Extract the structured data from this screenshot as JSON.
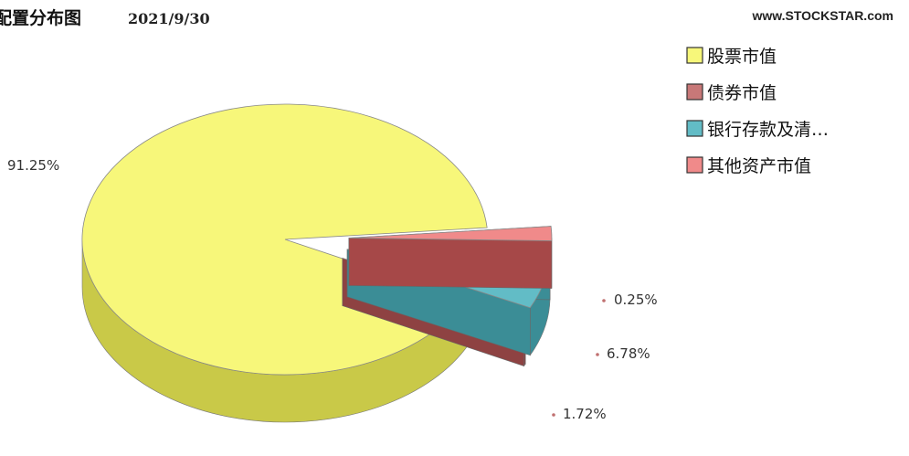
{
  "header": {
    "title": "配置分布图",
    "date": "2021/9/30",
    "source": "www.STOCKSTAR.com"
  },
  "chart_data": {
    "type": "pie",
    "title": "配置分布图",
    "subtitle": "2021/9/30",
    "legend_position": "top-right",
    "slices": [
      {
        "name": "股票市值",
        "legend_label": "股票市值",
        "value": 91.25,
        "label": "91.25%",
        "color": "#f7f77a",
        "side_color": "#c9c948"
      },
      {
        "name": "债券市值",
        "legend_label": "债券市值",
        "value": 0.25,
        "label": "0.25%",
        "color": "#c87878",
        "side_color": "#8e4242"
      },
      {
        "name": "银行存款及清算备付金合计",
        "legend_label": "银行存款及清…",
        "value": 6.78,
        "label": "6.78%",
        "color": "#62bcc6",
        "side_color": "#3b8d96"
      },
      {
        "name": "其他资产市值",
        "legend_label": "其他资产市值",
        "value": 1.72,
        "label": "1.72%",
        "color": "#f08a8a",
        "side_color": "#a64848"
      }
    ]
  }
}
